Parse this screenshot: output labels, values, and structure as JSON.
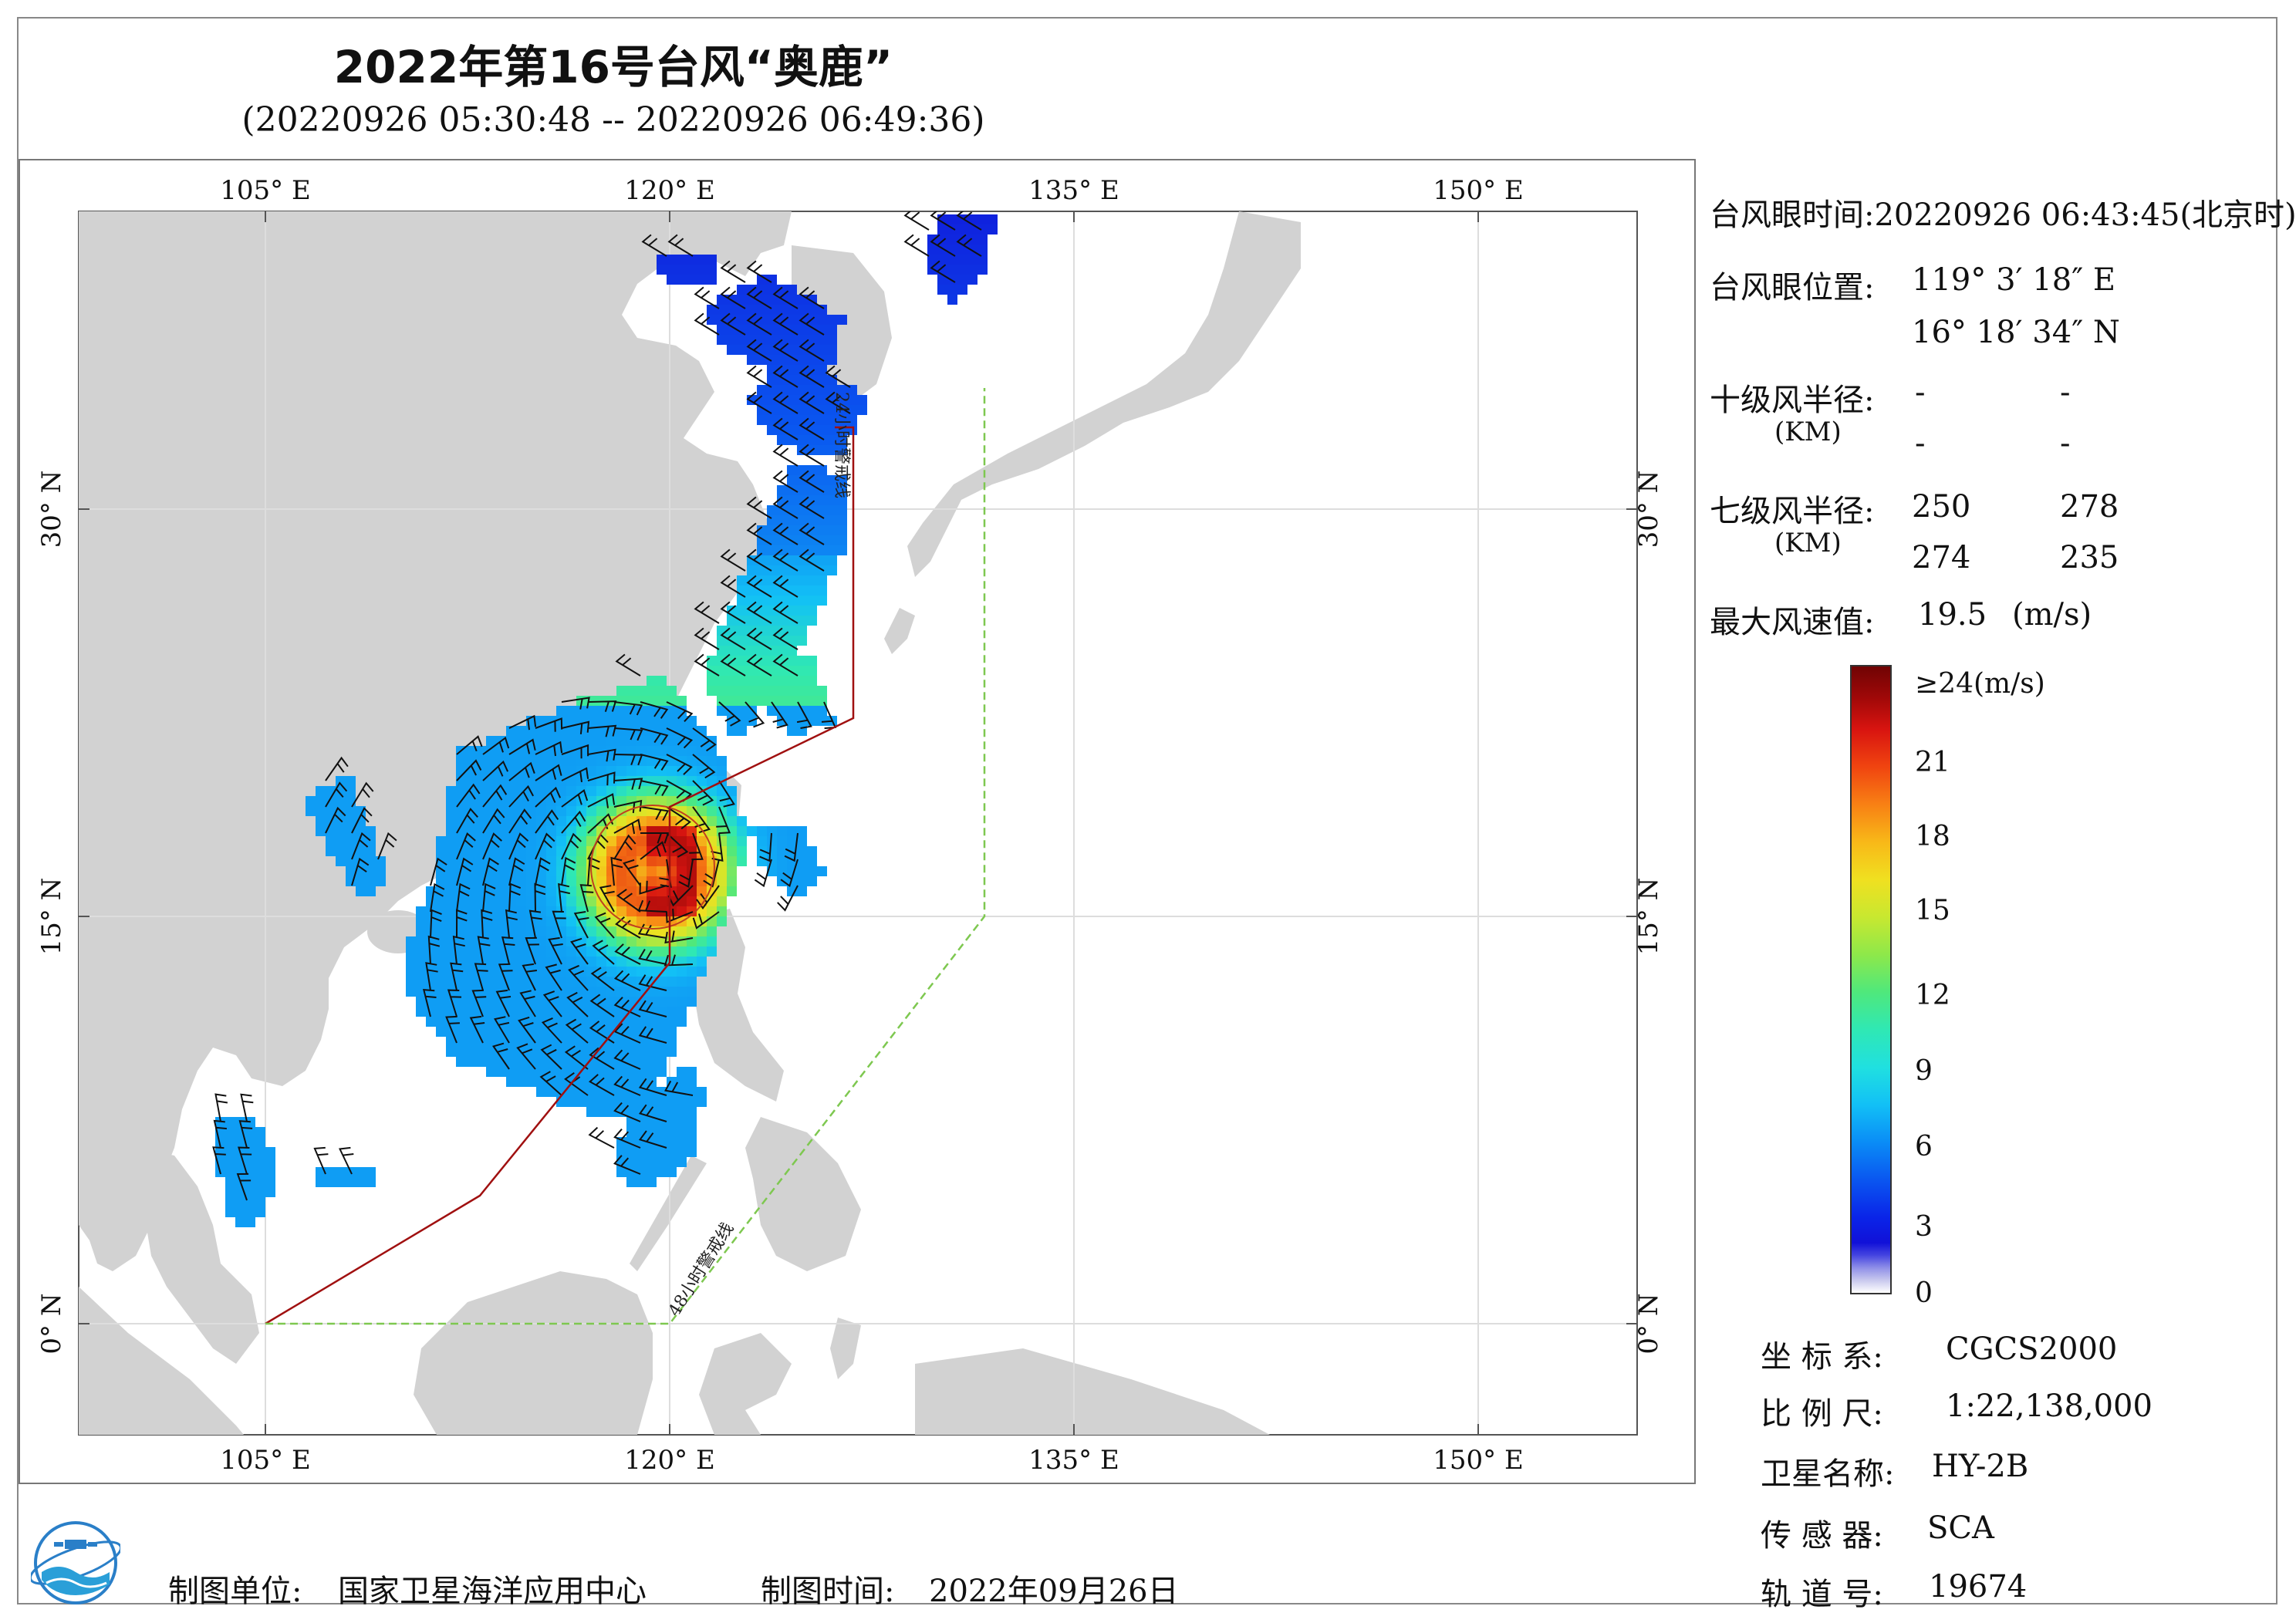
{
  "title": "2022年第16号台风“奥鹿”",
  "subtitle": "(20220926 05:30:48 -- 20220926 06:49:36)",
  "map": {
    "lon_top": [
      "105° E",
      "120° E",
      "135° E",
      "150° E"
    ],
    "lon_bottom": [
      "105° E",
      "120° E",
      "135° E",
      "150° E"
    ],
    "lat_left": [
      "30° N",
      "15° N",
      "0° N"
    ],
    "lat_right": [
      "30° N",
      "15° N",
      "0° N"
    ],
    "warning_24h": "24小时警戒线",
    "warning_48h": "48小时警戒线",
    "colors": {
      "land": "#d2d2d2",
      "ocean": "#ffffff",
      "warn24": "#a01010",
      "warn48": "#7ec850",
      "grid": "#dddddd"
    }
  },
  "panel": {
    "eye_time_label": "台风眼时间:",
    "eye_time_value": "20220926 06:43:45(北京时)",
    "eye_pos_label": "台风眼位置:",
    "eye_pos_lon": "119° 3′ 18″ E",
    "eye_pos_lat": "16° 18′ 34″ N",
    "r10_label": "十级风半径:",
    "r10_unit": "(KM)",
    "r10_values": [
      "-",
      "-",
      "-",
      "-"
    ],
    "r7_label": "七级风半径:",
    "r7_unit": "(KM)",
    "r7_values": [
      "250",
      "278",
      "274",
      "235"
    ],
    "maxwind_label": "最大风速值:",
    "maxwind_value": "19.5",
    "maxwind_unit": "(m/s)"
  },
  "colorbar": {
    "labels": [
      "≥24(m/s)",
      "21",
      "18",
      "15",
      "12",
      "9",
      "6",
      "3",
      "0"
    ],
    "min": 0,
    "max": 24
  },
  "info": {
    "coord_label": "坐 标 系:",
    "coord_value": "CGCS2000",
    "scale_label": "比 例 尺:",
    "scale_value": "1:22,138,000",
    "sat_label": "卫星名称:",
    "sat_value": "HY-2B",
    "sensor_label": "传 感 器:",
    "sensor_value": "SCA",
    "orbit_label": "轨 道 号:",
    "orbit_value": "19674"
  },
  "footer": {
    "org_label": "制图单位:",
    "org_value": "国家卫星海洋应用中心",
    "date_label": "制图时间:",
    "date_value": "2022年09月26日"
  },
  "logo": {
    "icon": "nsoas-logo-icon"
  }
}
